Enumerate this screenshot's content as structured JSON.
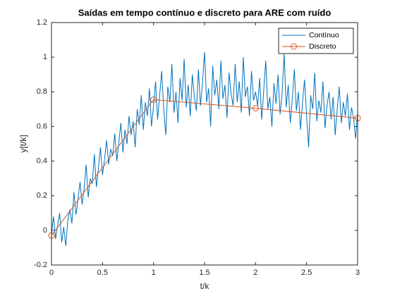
{
  "chart_data": {
    "type": "line",
    "title": "Saídas em tempo contínuo e discreto para ARE com ruído",
    "x_label": "t/k",
    "y_label": "y[t/k]",
    "xlim": [
      0,
      3
    ],
    "xticks": [
      0,
      0.5,
      1,
      1.5,
      2,
      2.5,
      3
    ],
    "ylim": [
      -0.2,
      1.2
    ],
    "yticks": [
      -0.2,
      0,
      0.2,
      0.4,
      0.6,
      0.8,
      1,
      1.2
    ],
    "legend": "top-right",
    "series": [
      {
        "name": "Contínuo",
        "color": "#0072bd",
        "marker": "none",
        "x": [
          0,
          0.02,
          0.04,
          0.06,
          0.08,
          0.1,
          0.12,
          0.14,
          0.16,
          0.18,
          0.2,
          0.22,
          0.24,
          0.26,
          0.28,
          0.3,
          0.32,
          0.34,
          0.36,
          0.38,
          0.4,
          0.42,
          0.44,
          0.46,
          0.48,
          0.5,
          0.52,
          0.54,
          0.56,
          0.58,
          0.6,
          0.62,
          0.64,
          0.66,
          0.68,
          0.7,
          0.72,
          0.74,
          0.76,
          0.78,
          0.8,
          0.82,
          0.84,
          0.86,
          0.88,
          0.9,
          0.92,
          0.94,
          0.96,
          0.98,
          1,
          1.02,
          1.04,
          1.06,
          1.08,
          1.1,
          1.12,
          1.14,
          1.16,
          1.18,
          1.2,
          1.22,
          1.24,
          1.26,
          1.28,
          1.3,
          1.32,
          1.34,
          1.36,
          1.38,
          1.4,
          1.42,
          1.44,
          1.46,
          1.48,
          1.5,
          1.52,
          1.54,
          1.56,
          1.58,
          1.6,
          1.62,
          1.64,
          1.66,
          1.68,
          1.7,
          1.72,
          1.74,
          1.76,
          1.78,
          1.8,
          1.82,
          1.84,
          1.86,
          1.88,
          1.9,
          1.92,
          1.94,
          1.96,
          1.98,
          2,
          2.02,
          2.04,
          2.06,
          2.08,
          2.1,
          2.12,
          2.14,
          2.16,
          2.18,
          2.2,
          2.22,
          2.24,
          2.26,
          2.28,
          2.3,
          2.32,
          2.34,
          2.36,
          2.38,
          2.4,
          2.42,
          2.44,
          2.46,
          2.48,
          2.5,
          2.52,
          2.54,
          2.56,
          2.58,
          2.6,
          2.62,
          2.64,
          2.66,
          2.68,
          2.7,
          2.72,
          2.74,
          2.76,
          2.78,
          2.8,
          2.82,
          2.84,
          2.86,
          2.88,
          2.9,
          2.92,
          2.94,
          2.96,
          2.98,
          3
        ],
        "values": [
          -0.02,
          0.08,
          -0.05,
          0.03,
          0.1,
          -0.07,
          0.02,
          -0.09,
          0.06,
          0.12,
          0.04,
          0.22,
          0.09,
          0.18,
          0.28,
          0.15,
          0.24,
          0.38,
          0.19,
          0.3,
          0.27,
          0.44,
          0.25,
          0.36,
          0.48,
          0.32,
          0.41,
          0.52,
          0.38,
          0.47,
          0.43,
          0.56,
          0.4,
          0.51,
          0.62,
          0.45,
          0.58,
          0.5,
          0.66,
          0.55,
          0.63,
          0.48,
          0.7,
          0.61,
          0.78,
          0.58,
          0.74,
          0.66,
          0.82,
          0.6,
          0.72,
          0.86,
          0.64,
          0.78,
          0.92,
          0.7,
          0.55,
          0.83,
          0.74,
          0.96,
          0.68,
          0.8,
          0.62,
          0.88,
          0.75,
          0.99,
          0.71,
          0.84,
          0.66,
          0.9,
          0.77,
          0.69,
          0.93,
          0.72,
          0.85,
          1.03,
          0.74,
          0.82,
          0.6,
          0.95,
          0.78,
          0.87,
          0.7,
          0.98,
          0.76,
          0.84,
          0.65,
          0.91,
          0.79,
          0.72,
          0.96,
          0.74,
          0.86,
          0.68,
          1.0,
          0.77,
          0.83,
          0.66,
          0.92,
          0.75,
          0.8,
          0.72,
          0.88,
          0.64,
          0.81,
          0.98,
          0.7,
          0.77,
          0.6,
          0.85,
          0.73,
          0.9,
          0.67,
          0.79,
          1.02,
          0.71,
          0.84,
          0.62,
          0.76,
          0.93,
          0.69,
          0.8,
          0.58,
          0.74,
          0.87,
          0.66,
          0.48,
          0.78,
          0.7,
          0.91,
          0.63,
          0.75,
          0.68,
          0.86,
          0.59,
          0.72,
          0.8,
          0.64,
          0.77,
          0.55,
          0.7,
          0.83,
          0.62,
          0.74,
          0.66,
          0.79,
          0.58,
          0.71,
          0.65,
          0.53,
          0.68
        ]
      },
      {
        "name": "Discreto",
        "color": "#d95319",
        "marker": "circle",
        "x": [
          0,
          1,
          2,
          3
        ],
        "values": [
          -0.03,
          0.755,
          0.705,
          0.648
        ]
      }
    ]
  }
}
